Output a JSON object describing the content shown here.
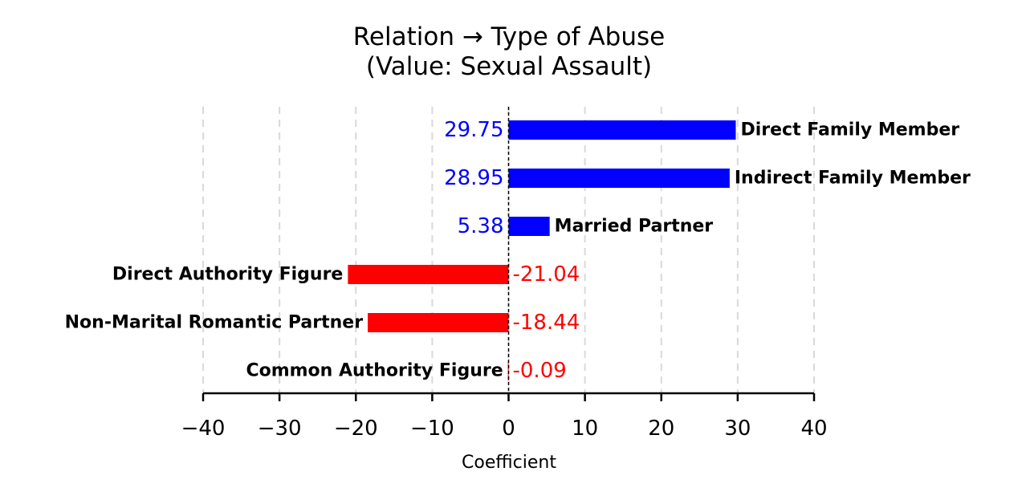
{
  "chart_data": {
    "type": "bar",
    "orientation": "horizontal",
    "title": "Relation → Type of Abuse",
    "subtitle": "(Value: Sexual Assault)",
    "xlabel": "Coefficient",
    "ylabel": "",
    "xlim": [
      -40,
      40
    ],
    "xticks": [
      -40,
      -30,
      -20,
      -10,
      0,
      10,
      20,
      30,
      40
    ],
    "xtick_labels": [
      "−40",
      "−30",
      "−20",
      "−10",
      "0",
      "10",
      "20",
      "30",
      "40"
    ],
    "grid": "vertical dashed",
    "categories": [
      "Direct Family Member",
      "Indirect Family Member",
      "Married Partner",
      "Direct Authority Figure",
      "Non-Marital Romantic Partner",
      "Common Authority Figure"
    ],
    "values": [
      29.75,
      28.95,
      5.38,
      -21.04,
      -18.44,
      -0.09
    ],
    "value_labels": [
      "29.75",
      "28.95",
      "5.38",
      "-21.04",
      "-18.44",
      "-0.09"
    ],
    "colors": {
      "positive": "#0000ff",
      "negative": "#ff0000",
      "zero_line": "#000000",
      "grid": "#d9d9d9"
    }
  }
}
